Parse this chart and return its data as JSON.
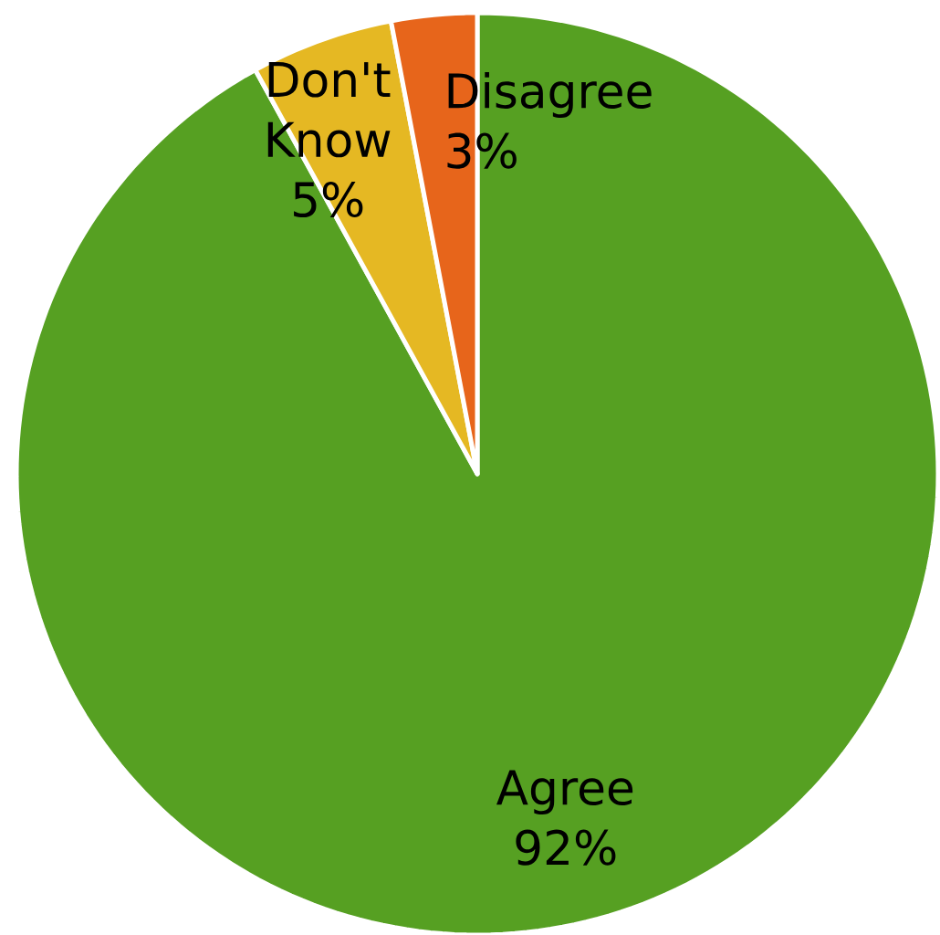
{
  "chart_data": {
    "type": "pie",
    "categories": [
      "Agree",
      "Don't Know",
      "Disagree"
    ],
    "values": [
      92,
      5,
      3
    ],
    "value_labels": [
      "92%",
      "5%",
      "3%"
    ],
    "colors": [
      "#56a022",
      "#e5b823",
      "#e7651b"
    ]
  }
}
